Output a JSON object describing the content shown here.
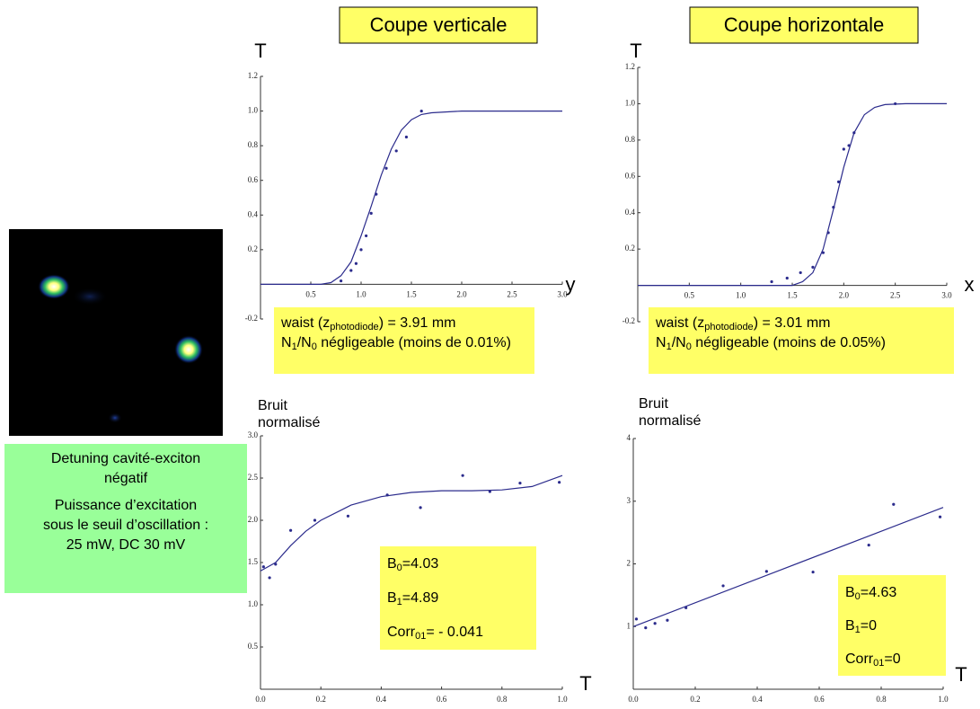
{
  "slide": {
    "caption_lines": [
      "Detuning cavité-exciton",
      "négatif",
      "Puissance d’excitation",
      "sous le seuil d’oscillation :",
      "25 mW, DC 30 mV"
    ]
  },
  "chart_data": [
    {
      "type": "scatter",
      "title": "Coupe verticale",
      "y_label": [
        "T"
      ],
      "x_label": "y",
      "xlim": [
        0,
        3
      ],
      "ylim": [
        -0.2,
        1.2
      ],
      "xticks": [
        0.5,
        {
          "value": 1,
          "label": "1.0"
        },
        1.5,
        {
          "value": 2,
          "label": "2.0"
        },
        2.5,
        {
          "value": 3,
          "label": "3.0"
        }
      ],
      "yticks": [
        -0.2,
        0.2,
        0.4,
        0.6,
        0.8,
        {
          "value": 1,
          "label": "1.0"
        },
        1.2
      ],
      "series": [
        {
          "mode": "markers",
          "color": "#2b2b8c",
          "x": [
            0.8,
            0.9,
            0.95,
            1.0,
            1.05,
            1.1,
            1.15,
            1.25,
            1.35,
            1.45,
            1.6
          ],
          "values": [
            0.02,
            0.08,
            0.12,
            0.2,
            0.28,
            0.41,
            0.52,
            0.67,
            0.77,
            0.85,
            1.0
          ]
        },
        {
          "mode": "line",
          "color": "#2b2b8c",
          "x": [
            0,
            0.6,
            0.7,
            0.8,
            0.9,
            1.0,
            1.1,
            1.2,
            1.3,
            1.4,
            1.5,
            1.6,
            1.7,
            2.0,
            3.0
          ],
          "values": [
            0,
            0,
            0.01,
            0.05,
            0.13,
            0.28,
            0.45,
            0.63,
            0.78,
            0.89,
            0.95,
            0.98,
            0.99,
            1.0,
            1.0
          ]
        }
      ],
      "annotation": [
        [
          "waist (z",
          "photodiode",
          ") =  3.91 mm"
        ],
        [
          "N",
          "1",
          "/N",
          "0",
          " négligeable (moins de 0.01%)"
        ]
      ]
    },
    {
      "type": "scatter",
      "title": "Coupe horizontale",
      "y_label": [
        "T"
      ],
      "x_label": "x",
      "xlim": [
        0,
        3
      ],
      "ylim": [
        -0.2,
        1.2
      ],
      "xticks": [
        0.5,
        {
          "value": 1,
          "label": "1.0"
        },
        1.5,
        {
          "value": 2,
          "label": "2.0"
        },
        2.5,
        {
          "value": 3,
          "label": "3.0"
        }
      ],
      "yticks": [
        -0.2,
        0.2,
        0.4,
        0.6,
        0.8,
        {
          "value": 1,
          "label": "1.0"
        },
        1.2
      ],
      "series": [
        {
          "mode": "markers",
          "color": "#2b2b8c",
          "x": [
            1.3,
            1.45,
            1.58,
            1.7,
            1.8,
            1.85,
            1.9,
            1.95,
            2.0,
            2.05,
            2.1,
            2.5
          ],
          "values": [
            0.02,
            0.04,
            0.07,
            0.1,
            0.18,
            0.29,
            0.43,
            0.57,
            0.75,
            0.77,
            0.84,
            1.0
          ]
        },
        {
          "mode": "line",
          "color": "#2b2b8c",
          "x": [
            0,
            1.5,
            1.6,
            1.7,
            1.8,
            1.9,
            2.0,
            2.1,
            2.2,
            2.3,
            2.4,
            2.6,
            3.0
          ],
          "values": [
            0,
            0,
            0.02,
            0.07,
            0.2,
            0.42,
            0.65,
            0.84,
            0.94,
            0.98,
            0.995,
            1,
            1
          ]
        }
      ],
      "annotation": [
        [
          "waist (z",
          "photodiode",
          ") = 3.01 mm"
        ],
        [
          "N",
          "1",
          "/N",
          "0",
          " négligeable (moins de 0.05%)"
        ]
      ]
    },
    {
      "type": "scatter",
      "y_label": [
        "Bruit",
        "normalisé"
      ],
      "x_label": "T",
      "xlim": [
        0,
        1
      ],
      "ylim": [
        0,
        3
      ],
      "xticks": [
        {
          "value": 0,
          "label": "0.0"
        },
        0.2,
        0.4,
        0.6,
        0.8,
        {
          "value": 1,
          "label": "1.0"
        }
      ],
      "yticks": [
        0.5,
        {
          "value": 1,
          "label": "1.0"
        },
        1.5,
        {
          "value": 2,
          "label": "2.0"
        },
        2.5,
        {
          "value": 3,
          "label": "3.0"
        }
      ],
      "series": [
        {
          "mode": "markers",
          "color": "#2b2b8c",
          "x": [
            0.01,
            0.03,
            0.05,
            0.1,
            0.18,
            0.29,
            0.42,
            0.53,
            0.67,
            0.76,
            0.86,
            0.99
          ],
          "values": [
            1.45,
            1.32,
            1.48,
            1.88,
            2.0,
            2.05,
            2.3,
            2.15,
            2.53,
            2.34,
            2.44,
            2.45
          ]
        },
        {
          "mode": "line",
          "color": "#2b2b8c",
          "x": [
            0,
            0.05,
            0.1,
            0.15,
            0.2,
            0.3,
            0.4,
            0.5,
            0.6,
            0.7,
            0.8,
            0.9,
            1.0
          ],
          "values": [
            1.4,
            1.5,
            1.7,
            1.87,
            2.0,
            2.18,
            2.28,
            2.33,
            2.35,
            2.35,
            2.36,
            2.4,
            2.53
          ]
        }
      ],
      "annotation": [
        [
          "B",
          "0",
          "=4.03"
        ],
        [
          "B",
          "1",
          "=4.89"
        ],
        [
          "Corr",
          "01",
          "= - 0.041"
        ]
      ]
    },
    {
      "type": "scatter",
      "y_label": [
        "Bruit",
        "normalisé"
      ],
      "x_label": "T",
      "xlim": [
        0,
        1
      ],
      "ylim": [
        0,
        4
      ],
      "xticks": [
        {
          "value": 0,
          "label": "0.0"
        },
        0.2,
        0.4,
        0.6,
        0.8,
        {
          "value": 1,
          "label": "1.0"
        }
      ],
      "yticks": [
        1,
        2,
        3,
        4
      ],
      "series": [
        {
          "mode": "markers",
          "color": "#2b2b8c",
          "x": [
            0.01,
            0.04,
            0.07,
            0.11,
            0.17,
            0.29,
            0.43,
            0.58,
            0.76,
            0.84,
            0.99
          ],
          "values": [
            1.12,
            0.98,
            1.05,
            1.1,
            1.3,
            1.65,
            1.88,
            1.87,
            2.3,
            2.95,
            2.75
          ]
        },
        {
          "mode": "line",
          "color": "#2b2b8c",
          "x": [
            0,
            1
          ],
          "values": [
            1.0,
            2.9
          ]
        }
      ],
      "annotation": [
        [
          "B",
          "0",
          "=4.63"
        ],
        [
          "B",
          "1",
          "=0"
        ],
        [
          "Corr",
          "01",
          "=0"
        ]
      ]
    }
  ]
}
